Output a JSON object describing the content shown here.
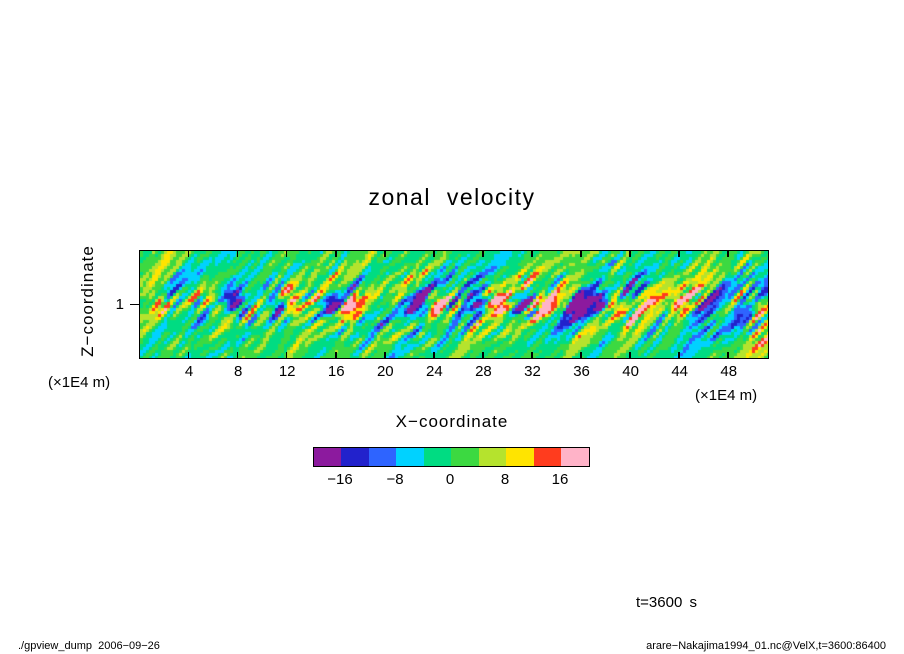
{
  "chart_data": {
    "type": "heatmap",
    "title": "zonal velocity",
    "xlabel": "X−coordinate",
    "x_units": "(×1E4 m)",
    "ylabel": "Z−coordinate",
    "y_units": "(×1E4 m)",
    "xlim": [
      0,
      51.2
    ],
    "ylim": [
      0,
      2
    ],
    "x_ticks": [
      4,
      8,
      12,
      16,
      20,
      24,
      28,
      32,
      36,
      40,
      44,
      48
    ],
    "y_ticks": [
      1
    ],
    "y_tick_labels": [
      "1"
    ],
    "grid": false,
    "legend_position": "none",
    "colorbar": {
      "levels": [
        -20,
        -16,
        -12,
        -8,
        -4,
        0,
        4,
        8,
        12,
        16,
        20
      ],
      "colors": [
        "#8c1a9e",
        "#2222cc",
        "#2e64ff",
        "#00d2ff",
        "#00dc82",
        "#3cd941",
        "#b5e32d",
        "#ffe400",
        "#ff3c1e",
        "#ffb3c8"
      ],
      "tick_values": [
        -16,
        -8,
        0,
        8,
        16
      ],
      "tick_labels": [
        "−16",
        "−8",
        "0",
        "8",
        "16"
      ]
    },
    "field": {
      "description": "Turbulent zonal velocity field: mostly near 0 (green) fine-grained speckle of cyan/yellow, with alternating strong positive (red/orange) and negative (blue/dark-blue) convective cells concentrated in a band near z = 1 (×1E4 m).",
      "background_value": 0,
      "anomaly_band_z": 1,
      "anomaly_centers": [
        {
          "x": 1.6,
          "amplitude": 12
        },
        {
          "x": 6.0,
          "amplitude": 15
        },
        {
          "x": 7.9,
          "amplitude": -17
        },
        {
          "x": 11.2,
          "amplitude": -19
        },
        {
          "x": 12.4,
          "amplitude": 16
        },
        {
          "x": 15.7,
          "amplitude": -16
        },
        {
          "x": 17.0,
          "amplitude": 14
        },
        {
          "x": 22.7,
          "amplitude": -15
        },
        {
          "x": 24.2,
          "amplitude": 17
        },
        {
          "x": 27.5,
          "amplitude": -16
        },
        {
          "x": 29.2,
          "amplitude": 15
        },
        {
          "x": 31.2,
          "amplitude": -18
        },
        {
          "x": 32.9,
          "amplitude": 14
        },
        {
          "x": 35.8,
          "amplitude": -20
        },
        {
          "x": 37.5,
          "amplitude": -14
        },
        {
          "x": 38.8,
          "amplitude": 17
        },
        {
          "x": 44.0,
          "amplitude": 9
        },
        {
          "x": 50.3,
          "amplitude": 16
        }
      ]
    },
    "annotations": {
      "time": "t=3600 s"
    }
  },
  "footer": {
    "left": "./gpview_dump  2006−09−26",
    "right": "arare−Nakajima1994_01.nc@VelX,t=3600:86400"
  }
}
